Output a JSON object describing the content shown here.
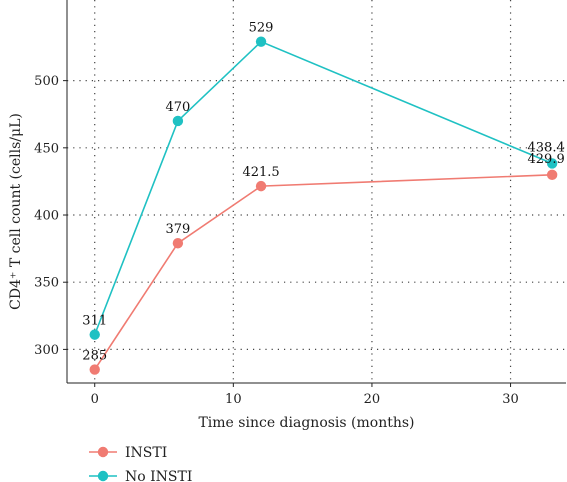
{
  "chart_data": {
    "type": "line",
    "xlabel": "Time since diagnosis (months)",
    "ylabel": "CD4⁺ T cell count (cells/μL)",
    "xlim": [
      -2,
      34
    ],
    "ylim": [
      275,
      560
    ],
    "x_ticks": [
      0,
      10,
      20,
      30
    ],
    "y_ticks": [
      300,
      350,
      400,
      450,
      500
    ],
    "grid": true,
    "legend_position": "bottom-left",
    "series": [
      {
        "name": "INSTI",
        "color": "#f07b72",
        "x": [
          0,
          6,
          12,
          33
        ],
        "y": [
          285,
          379,
          421.5,
          429.9
        ],
        "labels": [
          "285",
          "379",
          "421.5",
          "429.9"
        ]
      },
      {
        "name": "No INSTI",
        "color": "#1fc1c3",
        "x": [
          0,
          6,
          12,
          33
        ],
        "y": [
          311,
          470,
          529,
          438.4
        ],
        "labels": [
          "311",
          "470",
          "529",
          "438.4"
        ]
      }
    ]
  }
}
